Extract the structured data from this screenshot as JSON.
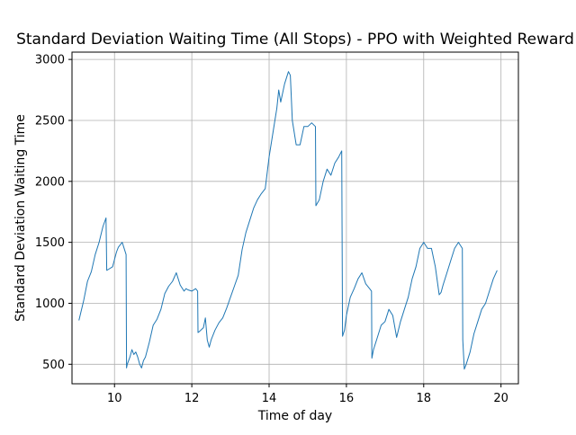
{
  "chart_data": {
    "type": "line",
    "title": "Standard Deviation Waiting Time (All Stops) - PPO with Weighted Reward",
    "xlabel": "Time of day",
    "ylabel": "Standard Deviation Waiting Time",
    "xlim": [
      8.9,
      20.45
    ],
    "ylim": [
      340,
      3060
    ],
    "xticks": [
      10,
      12,
      14,
      16,
      18,
      20
    ],
    "xtick_labels": [
      "10",
      "12",
      "14",
      "16",
      "18",
      "20"
    ],
    "yticks": [
      500,
      1000,
      1500,
      2000,
      2500,
      3000
    ],
    "ytick_labels": [
      "500",
      "1000",
      "1500",
      "2000",
      "2500",
      "3000"
    ],
    "grid": true,
    "series": [
      {
        "color": "#1f77b4",
        "x": [
          9.08,
          9.2,
          9.3,
          9.4,
          9.5,
          9.6,
          9.7,
          9.78,
          9.8,
          9.85,
          9.95,
          10.05,
          10.1,
          10.2,
          10.3,
          10.31,
          10.33,
          10.4,
          10.45,
          10.5,
          10.55,
          10.6,
          10.65,
          10.7,
          10.75,
          10.8,
          10.9,
          11.0,
          11.1,
          11.2,
          11.3,
          11.4,
          11.5,
          11.6,
          11.7,
          11.8,
          11.85,
          11.9,
          12.0,
          12.1,
          12.15,
          12.16,
          12.2,
          12.3,
          12.35,
          12.4,
          12.45,
          12.5,
          12.6,
          12.7,
          12.8,
          12.9,
          13.0,
          13.1,
          13.2,
          13.3,
          13.4,
          13.5,
          13.6,
          13.7,
          13.8,
          13.9,
          14.0,
          14.1,
          14.2,
          14.25,
          14.3,
          14.4,
          14.5,
          14.55,
          14.6,
          14.7,
          14.8,
          14.9,
          15.0,
          15.1,
          15.2,
          15.21,
          15.3,
          15.4,
          15.5,
          15.6,
          15.7,
          15.8,
          15.88,
          15.9,
          15.95,
          16.0,
          16.1,
          16.2,
          16.3,
          16.4,
          16.5,
          16.6,
          16.65,
          16.66,
          16.7,
          16.8,
          16.9,
          17.0,
          17.1,
          17.2,
          17.3,
          17.4,
          17.5,
          17.6,
          17.7,
          17.8,
          17.9,
          18.0,
          18.1,
          18.2,
          18.3,
          18.4,
          18.45,
          18.5,
          18.6,
          18.7,
          18.8,
          18.9,
          19.0,
          19.01,
          19.05,
          19.1,
          19.2,
          19.3,
          19.4,
          19.5,
          19.6,
          19.7,
          19.8,
          19.9
        ],
        "y": [
          860,
          1020,
          1180,
          1260,
          1400,
          1500,
          1630,
          1700,
          1270,
          1280,
          1300,
          1420,
          1460,
          1500,
          1400,
          470,
          500,
          560,
          620,
          580,
          600,
          560,
          500,
          470,
          530,
          560,
          680,
          820,
          870,
          950,
          1080,
          1140,
          1180,
          1250,
          1150,
          1100,
          1120,
          1110,
          1100,
          1120,
          1100,
          760,
          770,
          800,
          880,
          700,
          640,
          700,
          780,
          840,
          880,
          960,
          1050,
          1140,
          1230,
          1440,
          1580,
          1680,
          1780,
          1850,
          1900,
          1940,
          2200,
          2400,
          2600,
          2750,
          2650,
          2800,
          2900,
          2870,
          2500,
          2300,
          2300,
          2450,
          2450,
          2480,
          2450,
          1800,
          1850,
          2000,
          2100,
          2050,
          2150,
          2200,
          2250,
          730,
          780,
          900,
          1050,
          1120,
          1200,
          1250,
          1160,
          1120,
          1100,
          550,
          620,
          720,
          820,
          850,
          950,
          900,
          720,
          850,
          950,
          1050,
          1200,
          1300,
          1450,
          1500,
          1450,
          1450,
          1300,
          1070,
          1090,
          1150,
          1250,
          1350,
          1450,
          1500,
          1450,
          700,
          460,
          500,
          600,
          750,
          850,
          950,
          1000,
          1100,
          1200,
          1270
        ]
      }
    ]
  }
}
